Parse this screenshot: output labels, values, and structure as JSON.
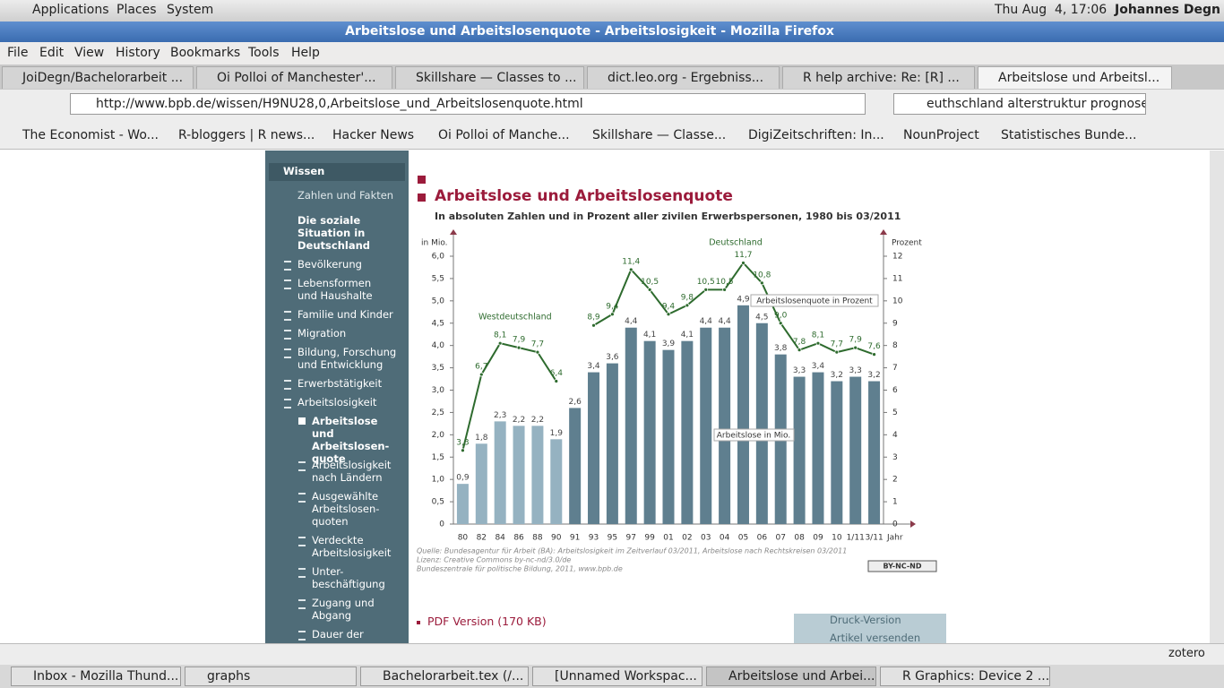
{
  "panel": {
    "menus": [
      "Applications",
      "Places",
      "System"
    ],
    "clock": "Thu Aug  4, 17:06",
    "user": "Johannes Degn"
  },
  "window_title": "Arbeitslose und Arbeitslosenquote - Arbeitslosigkeit - Mozilla Firefox",
  "menubar": [
    "File",
    "Edit",
    "View",
    "History",
    "Bookmarks",
    "Tools",
    "Help"
  ],
  "tabs": [
    "JoiDegn/Bachelorarbeit ...",
    "Oi Polloi of Manchester'...",
    "Skillshare — Classes to ...",
    "dict.leo.org - Ergebniss...",
    "R help archive: Re: [R] ...",
    "Arbeitslose und Arbeitsl..."
  ],
  "url": "http://www.bpb.de/wissen/H9NU28,0,Arbeitslose_und_Arbeitslosenquote.html",
  "search": "euthschland alterstruktur prognose",
  "bookmarks": [
    "The Economist - Wo...",
    "R-bloggers | R news...",
    "Hacker News",
    "Oi Polloi of Manche...",
    "Skillshare — Classe...",
    "DigiZeitschriften: In...",
    "NounProject",
    "Statistisches Bunde..."
  ],
  "sidebar": [
    "Wissen",
    "Zahlen und Fakten",
    "Die soziale Situation in Deutschland",
    "Bevölkerung",
    "Lebensformen und Haushalte",
    "Familie und Kinder",
    "Migration",
    "Bildung, Forschung und Entwicklung",
    "Erwerbstätigkeit",
    "Arbeitslosigkeit",
    "Arbeitslose und Arbeitslosen-quote",
    "Arbeitslosigkeit nach Ländern",
    "Ausgewählte Arbeitslosen-quoten",
    "Verdeckte Arbeitslosigkeit",
    "Unter-beschäftigung",
    "Zugang und Abgang",
    "Dauer der"
  ],
  "chart_data": {
    "type": "bar",
    "title": "Arbeitslose und Arbeitslosenquote",
    "subtitle": "In absoluten Zahlen und in Prozent aller zivilen Erwerbspersonen, 1980 bis 03/2011",
    "y_label": "in Mio.",
    "y2_label": "Prozent",
    "x_label": "Jahr",
    "categories": [
      "80",
      "82",
      "84",
      "86",
      "88",
      "90",
      "91",
      "93",
      "95",
      "97",
      "99",
      "01",
      "02",
      "03",
      "04",
      "05",
      "06",
      "07",
      "08",
      "09",
      "10",
      "1/11",
      "3/11"
    ],
    "series": [
      {
        "name": "Arbeitslose in Mio.",
        "type": "bar",
        "colors": [
          "#95b2c1",
          "#95b2c1",
          "#95b2c1",
          "#95b2c1",
          "#95b2c1",
          "#95b2c1",
          "#5f7f8f",
          "#5f7f8f",
          "#5f7f8f",
          "#5f7f8f",
          "#5f7f8f",
          "#5f7f8f",
          "#5f7f8f",
          "#5f7f8f",
          "#5f7f8f",
          "#5f7f8f",
          "#5f7f8f",
          "#5f7f8f",
          "#5f7f8f",
          "#5f7f8f",
          "#5f7f8f",
          "#5f7f8f",
          "#5f7f8f"
        ],
        "values": [
          0.9,
          1.8,
          2.3,
          2.2,
          2.2,
          1.9,
          2.6,
          3.4,
          3.6,
          4.4,
          4.1,
          3.9,
          4.1,
          4.4,
          4.4,
          4.9,
          4.5,
          3.8,
          3.3,
          3.4,
          3.2,
          3.3,
          3.2
        ],
        "value_labels": [
          "0,9",
          "1,8",
          "2,3",
          "2,2",
          "2,2",
          "1,9",
          "2,6",
          "3,4",
          "3,6",
          "4,4",
          "4,1",
          "3,9",
          "4,1",
          "4,4",
          "4,4",
          "4,9",
          "4,5",
          "3,8",
          "3,3",
          "3,4",
          "3,2",
          "3,3",
          "3,2"
        ]
      },
      {
        "name": "Westdeutschland",
        "type": "line",
        "axis": "y2",
        "color": "#2e6b2e",
        "values": [
          3.3,
          6.7,
          8.1,
          7.9,
          7.7,
          6.4,
          null,
          null,
          null,
          null,
          null,
          null,
          null,
          null,
          null,
          null,
          null,
          null,
          null,
          null,
          null,
          null,
          null
        ],
        "value_labels": [
          "3,3",
          "6,7",
          "8,1",
          "7,9",
          "7,7",
          "6,4",
          null,
          null,
          null,
          null,
          null,
          null,
          null,
          null,
          null,
          null,
          null,
          null,
          null,
          null,
          null,
          null,
          null
        ]
      },
      {
        "name": "Deutschland",
        "type": "line",
        "axis": "y2",
        "color": "#2e6b2e",
        "values": [
          null,
          null,
          null,
          null,
          null,
          null,
          null,
          8.9,
          9.4,
          11.4,
          10.5,
          9.4,
          9.8,
          10.5,
          10.5,
          11.7,
          10.8,
          9.0,
          7.8,
          8.1,
          7.7,
          7.9,
          7.6
        ],
        "value_labels": [
          null,
          null,
          null,
          null,
          null,
          null,
          null,
          "8,9",
          "9,4",
          "11,4",
          "10,5",
          "9,4",
          "9,8",
          "10,5",
          "10,5",
          "11,7",
          "10,8",
          "9,0",
          "7,8",
          "8,1",
          "7,7",
          "7,9",
          "7,6"
        ]
      }
    ],
    "annotations": [
      "Arbeitslosenquote in Prozent",
      "Arbeitslose in Mio."
    ],
    "ylim": [
      0,
      6
    ],
    "yticks": [
      0,
      {
        "value": 0.5,
        "label": "0,5"
      },
      {
        "value": 1,
        "label": "1,0"
      },
      {
        "value": 1.5,
        "label": "1,5"
      },
      {
        "value": 2,
        "label": "2,0"
      },
      {
        "value": 2.5,
        "label": "2,5"
      },
      {
        "value": 3,
        "label": "3,0"
      },
      {
        "value": 3.5,
        "label": "3,5"
      },
      {
        "value": 4,
        "label": "4,0"
      },
      {
        "value": 4.5,
        "label": "4,5"
      },
      {
        "value": 5,
        "label": "5,0"
      },
      {
        "value": 5.5,
        "label": "5,5"
      },
      {
        "value": 6,
        "label": "6,0"
      }
    ],
    "y2lim": [
      0,
      12
    ],
    "y2ticks": [
      0,
      1,
      2,
      3,
      4,
      5,
      6,
      7,
      8,
      9,
      10,
      11,
      12
    ],
    "source": [
      "Quelle: Bundesagentur für Arbeit (BA): Arbeitslosigkeit im Zeitverlauf 03/2011, Arbeitslose nach Rechtskreisen 03/2011",
      "Lizenz: Creative Commons by-nc-nd/3.0/de",
      "Bundeszentrale für politische Bildung, 2011, www.bpb.de"
    ],
    "license": "BY-NC-ND"
  },
  "links": {
    "pdf": "PDF Version (170 KB)",
    "print": "Druck-Version",
    "send": "Artikel versenden"
  },
  "addon_bar": "zotero",
  "taskbar": [
    "Inbox - Mozilla Thund...",
    "graphs",
    "Bachelorarbeit.tex (/...",
    "[Unnamed Workspac...",
    "Arbeitslose und Arbei...",
    "R Graphics: Device 2 ..."
  ]
}
